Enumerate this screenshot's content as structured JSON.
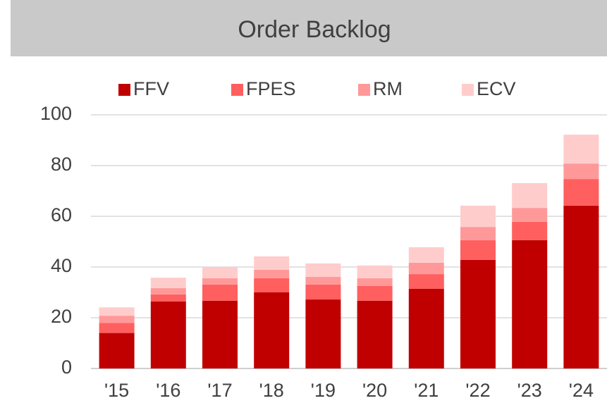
{
  "chart_data": {
    "type": "stacked_bar",
    "title": "Order Backlog",
    "categories": [
      "'15",
      "'16",
      "'17",
      "'18",
      "'19",
      "'20",
      "'21",
      "'22",
      "'23",
      "'24"
    ],
    "series": [
      {
        "name": "FFV",
        "color": "#c00000",
        "values": [
          14,
          26.4,
          26.7,
          30,
          27.2,
          26.7,
          31.4,
          42.8,
          50.6,
          64.2
        ]
      },
      {
        "name": "FPES",
        "color": "#ff5f5f",
        "values": [
          4,
          2.8,
          6.4,
          5.6,
          5.9,
          5.8,
          5.8,
          7.8,
          7.2,
          10.5
        ]
      },
      {
        "name": "RM",
        "color": "#ff9999",
        "values": [
          2.8,
          2.5,
          2.5,
          3.3,
          3,
          3.1,
          4.5,
          5.2,
          5.5,
          6.1
        ]
      },
      {
        "name": "ECV",
        "color": "#ffcccc",
        "values": [
          3.3,
          4.1,
          4.4,
          5.3,
          5.3,
          5,
          6.1,
          8.4,
          9.8,
          11.4
        ]
      }
    ],
    "ylim": [
      0,
      100
    ],
    "yticks": [
      0,
      20,
      40,
      60,
      80,
      100
    ],
    "grid": true
  }
}
